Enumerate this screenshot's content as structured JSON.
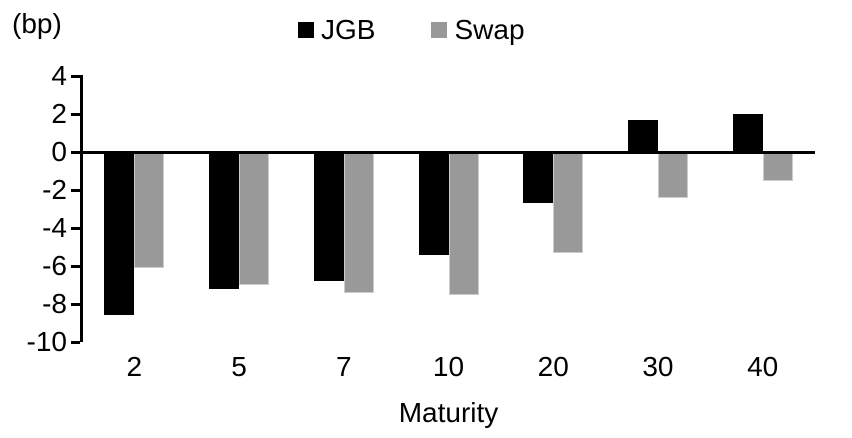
{
  "chart_data": {
    "type": "bar",
    "title": "",
    "unit_label": "(bp)",
    "xlabel": "Maturity",
    "ylabel": "",
    "categories": [
      "2",
      "5",
      "7",
      "10",
      "20",
      "30",
      "40"
    ],
    "series": [
      {
        "name": "JGB",
        "color": "#000000",
        "values": [
          -8.6,
          -7.2,
          -6.8,
          -5.4,
          -2.7,
          1.7,
          2.0
        ]
      },
      {
        "name": "Swap",
        "color": "#999999",
        "values": [
          -6.1,
          -7.0,
          -7.4,
          -7.5,
          -5.3,
          -2.4,
          -1.5
        ]
      }
    ],
    "yticks": [
      4,
      2,
      0,
      -2,
      -4,
      -6,
      -8,
      -10
    ],
    "ylim": [
      -10,
      4
    ],
    "legend_position": "top-center",
    "grid": false,
    "axis_color": "#000000",
    "background_color": "#ffffff"
  }
}
